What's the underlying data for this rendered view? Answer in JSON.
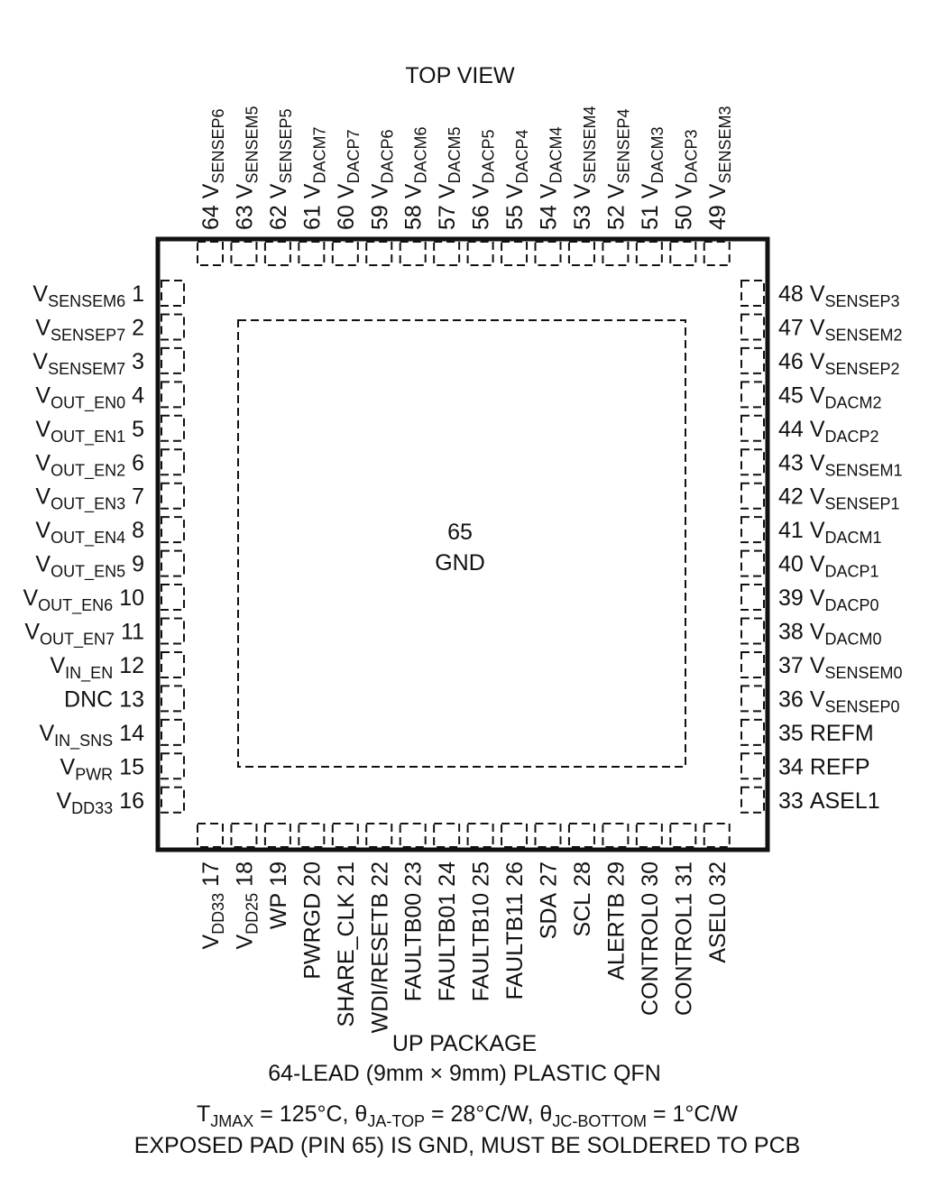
{
  "header": {
    "title": "TOP VIEW"
  },
  "exposed_pad": {
    "number": 65,
    "name": "GND"
  },
  "pins": {
    "left": [
      {
        "number": 1,
        "name": "V",
        "sub": "SENSEM6"
      },
      {
        "number": 2,
        "name": "V",
        "sub": "SENSEP7"
      },
      {
        "number": 3,
        "name": "V",
        "sub": "SENSEM7"
      },
      {
        "number": 4,
        "name": "V",
        "sub": "OUT_EN0"
      },
      {
        "number": 5,
        "name": "V",
        "sub": "OUT_EN1"
      },
      {
        "number": 6,
        "name": "V",
        "sub": "OUT_EN2"
      },
      {
        "number": 7,
        "name": "V",
        "sub": "OUT_EN3"
      },
      {
        "number": 8,
        "name": "V",
        "sub": "OUT_EN4"
      },
      {
        "number": 9,
        "name": "V",
        "sub": "OUT_EN5"
      },
      {
        "number": 10,
        "name": "V",
        "sub": "OUT_EN6"
      },
      {
        "number": 11,
        "name": "V",
        "sub": "OUT_EN7"
      },
      {
        "number": 12,
        "name": "V",
        "sub": "IN_EN"
      },
      {
        "number": 13,
        "name": "DNC"
      },
      {
        "number": 14,
        "name": "V",
        "sub": "IN_SNS"
      },
      {
        "number": 15,
        "name": "V",
        "sub": "PWR"
      },
      {
        "number": 16,
        "name": "V",
        "sub": "DD33"
      }
    ],
    "bottom": [
      {
        "number": 17,
        "name": "V",
        "sub": "DD33"
      },
      {
        "number": 18,
        "name": "V",
        "sub": "DD25"
      },
      {
        "number": 19,
        "name": "WP"
      },
      {
        "number": 20,
        "name": "PWRGD"
      },
      {
        "number": 21,
        "name": "SHARE_CLK"
      },
      {
        "number": 22,
        "name": "WDI/RESETB"
      },
      {
        "number": 23,
        "name": "FAULTB00"
      },
      {
        "number": 24,
        "name": "FAULTB01"
      },
      {
        "number": 25,
        "name": "FAULTB10"
      },
      {
        "number": 26,
        "name": "FAULTB11"
      },
      {
        "number": 27,
        "name": "SDA"
      },
      {
        "number": 28,
        "name": "SCL"
      },
      {
        "number": 29,
        "name": "ALERTB"
      },
      {
        "number": 30,
        "name": "CONTROL0"
      },
      {
        "number": 31,
        "name": "CONTROL1"
      },
      {
        "number": 32,
        "name": "ASEL0"
      }
    ],
    "right": [
      {
        "number": 48,
        "name": "V",
        "sub": "SENSEP3"
      },
      {
        "number": 47,
        "name": "V",
        "sub": "SENSEM2"
      },
      {
        "number": 46,
        "name": "V",
        "sub": "SENSEP2"
      },
      {
        "number": 45,
        "name": "V",
        "sub": "DACM2"
      },
      {
        "number": 44,
        "name": "V",
        "sub": "DACP2"
      },
      {
        "number": 43,
        "name": "V",
        "sub": "SENSEM1"
      },
      {
        "number": 42,
        "name": "V",
        "sub": "SENSEP1"
      },
      {
        "number": 41,
        "name": "V",
        "sub": "DACM1"
      },
      {
        "number": 40,
        "name": "V",
        "sub": "DACP1"
      },
      {
        "number": 39,
        "name": "V",
        "sub": "DACP0"
      },
      {
        "number": 38,
        "name": "V",
        "sub": "DACM0"
      },
      {
        "number": 37,
        "name": "V",
        "sub": "SENSEM0"
      },
      {
        "number": 36,
        "name": "V",
        "sub": "SENSEP0"
      },
      {
        "number": 35,
        "name": "REFM"
      },
      {
        "number": 34,
        "name": "REFP"
      },
      {
        "number": 33,
        "name": "ASEL1"
      }
    ],
    "top": [
      {
        "number": 64,
        "name": "V",
        "sub": "SENSEP6"
      },
      {
        "number": 63,
        "name": "V",
        "sub": "SENSEM5"
      },
      {
        "number": 62,
        "name": "V",
        "sub": "SENSEP5"
      },
      {
        "number": 61,
        "name": "V",
        "sub": "DACM7"
      },
      {
        "number": 60,
        "name": "V",
        "sub": "DACP7"
      },
      {
        "number": 59,
        "name": "V",
        "sub": "DACP6"
      },
      {
        "number": 58,
        "name": "V",
        "sub": "DACM6"
      },
      {
        "number": 57,
        "name": "V",
        "sub": "DACM5"
      },
      {
        "number": 56,
        "name": "V",
        "sub": "DACP5"
      },
      {
        "number": 55,
        "name": "V",
        "sub": "DACP4"
      },
      {
        "number": 54,
        "name": "V",
        "sub": "DACM4"
      },
      {
        "number": 53,
        "name": "V",
        "sub": "SENSEM4"
      },
      {
        "number": 52,
        "name": "V",
        "sub": "SENSEP4"
      },
      {
        "number": 51,
        "name": "V",
        "sub": "DACM3"
      },
      {
        "number": 50,
        "name": "V",
        "sub": "DACP3"
      },
      {
        "number": 49,
        "name": "V",
        "sub": "SENSEM3"
      }
    ]
  },
  "footer": {
    "package": "UP PACKAGE",
    "description": "64-LEAD (9mm × 9mm) PLASTIC QFN",
    "thermal": [
      {
        "text": "T"
      },
      {
        "sub": "JMAX"
      },
      {
        "text": " = 125°C, θ"
      },
      {
        "sub": "JA-TOP"
      },
      {
        "text": " = 28°C/W, θ"
      },
      {
        "sub": "JC-BOTTOM"
      },
      {
        "text": " = 1°C/W"
      }
    ],
    "note": "EXPOSED PAD (PIN 65) IS GND, MUST BE SOLDERED TO PCB"
  }
}
